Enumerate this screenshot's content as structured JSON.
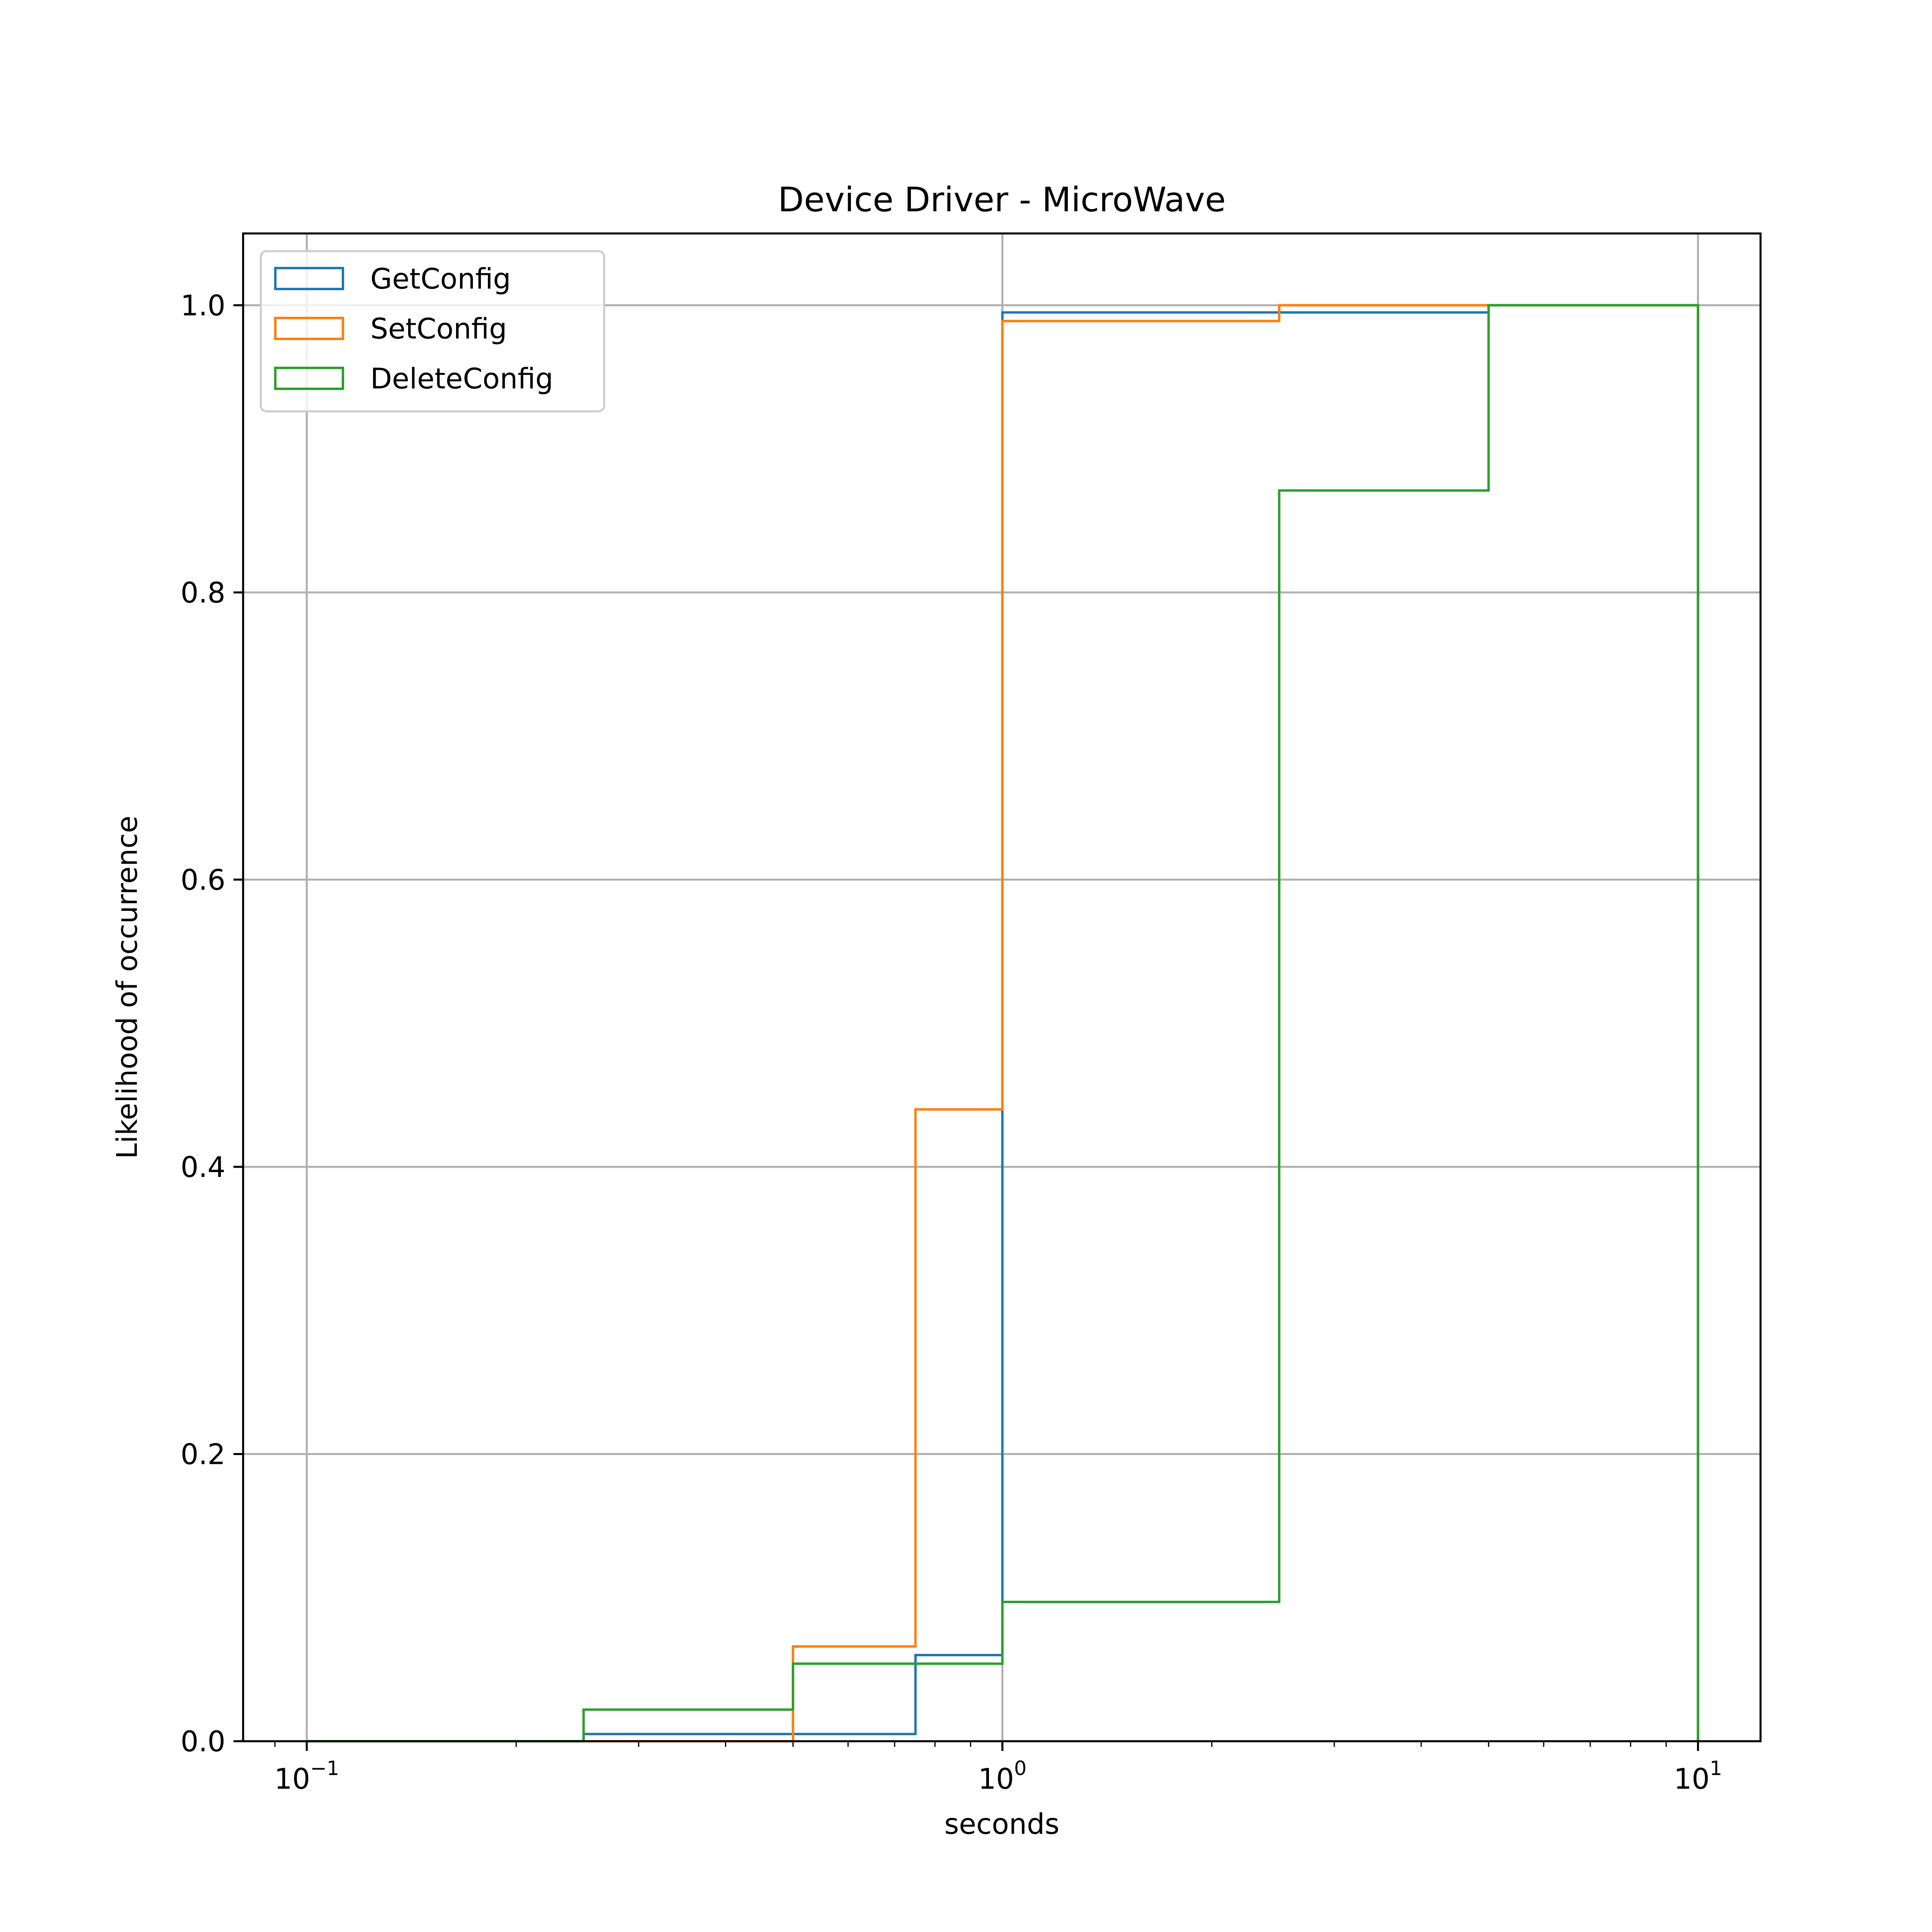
{
  "chart_data": {
    "type": "line",
    "title": "Device Driver - MicroWave",
    "xlabel": "seconds",
    "ylabel": "Likelihood of occurrence",
    "x_scale": "log",
    "xlim": [
      0.081,
      12.3
    ],
    "ylim": [
      0,
      1.05
    ],
    "x_ticks": [
      {
        "value": 0.1,
        "base": "10",
        "exp": "−1"
      },
      {
        "value": 1,
        "base": "10",
        "exp": "0"
      },
      {
        "value": 10,
        "base": "10",
        "exp": "1"
      }
    ],
    "y_ticks": [
      {
        "value": 0,
        "label": "0.0"
      },
      {
        "value": 0.2,
        "label": "0.2"
      },
      {
        "value": 0.4,
        "label": "0.4"
      },
      {
        "value": 0.6,
        "label": "0.6"
      },
      {
        "value": 0.8,
        "label": "0.8"
      },
      {
        "value": 1.0,
        "label": "1.0"
      }
    ],
    "grid": true,
    "legend_position": "top-left",
    "series": [
      {
        "name": "GetConfig",
        "color": "#1f77b4",
        "bin_edges": [
          0.1,
          0.25,
          0.5,
          0.75,
          1,
          2.5,
          5,
          10
        ],
        "values": [
          0.0,
          0.005,
          0.005,
          0.06,
          0.995,
          0.995,
          1.0
        ]
      },
      {
        "name": "SetConfig",
        "color": "#ff7f0e",
        "bin_edges": [
          0.1,
          0.25,
          0.5,
          0.75,
          1,
          2.5,
          5,
          10
        ],
        "values": [
          0.0,
          0.0,
          0.066,
          0.44,
          0.989,
          1.0,
          1.0
        ]
      },
      {
        "name": "DeleteConfig",
        "color": "#2ca02c",
        "bin_edges": [
          0.1,
          0.25,
          0.5,
          0.75,
          1,
          2.5,
          5,
          10
        ],
        "values": [
          0.0,
          0.022,
          0.054,
          0.054,
          0.097,
          0.871,
          1.0
        ]
      }
    ]
  }
}
